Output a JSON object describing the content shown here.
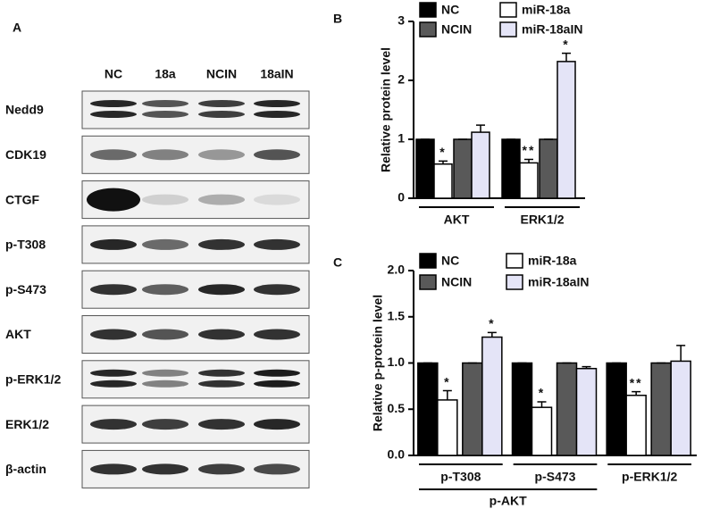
{
  "panel_a": {
    "label": "A",
    "lanes": [
      "NC",
      "18a",
      "NCIN",
      "18aIN"
    ],
    "rows": [
      "Nedd9",
      "CDK19",
      "CTGF",
      "p-T308",
      "p-S473",
      "AKT",
      "p-ERK1/2",
      "ERK1/2",
      "β-actin"
    ]
  },
  "chart_data": [
    {
      "type": "bar",
      "panel": "B",
      "ylabel": "Relative protein level",
      "categories": [
        "AKT",
        "ERK1/2"
      ],
      "series": [
        {
          "name": "NC",
          "color": "#000000",
          "values": [
            1,
            1
          ],
          "errors": [
            0,
            0
          ],
          "annotations": [
            null,
            null
          ]
        },
        {
          "name": "miR-18a",
          "color": "#ffffff",
          "values": [
            0.58,
            0.6
          ],
          "errors": [
            0.05,
            0.06
          ],
          "annotations": [
            "*",
            "**"
          ]
        },
        {
          "name": "NCIN",
          "color": "#595959",
          "values": [
            1,
            1
          ],
          "errors": [
            0,
            0
          ],
          "annotations": [
            null,
            null
          ]
        },
        {
          "name": "miR-18aIN",
          "color": "#e4e4f7",
          "values": [
            1.12,
            2.32
          ],
          "errors": [
            0.12,
            0.14
          ],
          "annotations": [
            null,
            "*"
          ]
        }
      ],
      "ylim": [
        0,
        3
      ],
      "yticks": [
        0,
        1,
        2,
        3
      ]
    },
    {
      "type": "bar",
      "panel": "C",
      "ylabel": "Relative  p-protein level",
      "categories": [
        "p-T308",
        "p-S473",
        "p-ERK1/2"
      ],
      "groups": [
        {
          "label": "p-AKT",
          "span": [
            0,
            1
          ]
        }
      ],
      "series": [
        {
          "name": "NC",
          "color": "#000000",
          "values": [
            1,
            1,
            1
          ],
          "errors": [
            0,
            0,
            0
          ],
          "annotations": [
            null,
            null,
            null
          ]
        },
        {
          "name": "miR-18a",
          "color": "#ffffff",
          "values": [
            0.6,
            0.52,
            0.65
          ],
          "errors": [
            0.1,
            0.06,
            0.04
          ],
          "annotations": [
            "*",
            "*",
            "**"
          ]
        },
        {
          "name": "NCIN",
          "color": "#595959",
          "values": [
            1,
            1,
            1
          ],
          "errors": [
            0,
            0,
            0
          ],
          "annotations": [
            null,
            null,
            null
          ]
        },
        {
          "name": "miR-18aIN",
          "color": "#e4e4f7",
          "values": [
            1.28,
            0.94,
            1.02
          ],
          "errors": [
            0.05,
            0.02,
            0.17
          ],
          "annotations": [
            "*",
            null,
            null
          ]
        }
      ],
      "ylim": [
        0,
        2
      ],
      "yticks": [
        {
          "value": 0,
          "label": "0.0"
        },
        0.5,
        {
          "value": 1,
          "label": "1.0"
        },
        1.5,
        {
          "value": 2,
          "label": "2.0"
        }
      ]
    }
  ]
}
